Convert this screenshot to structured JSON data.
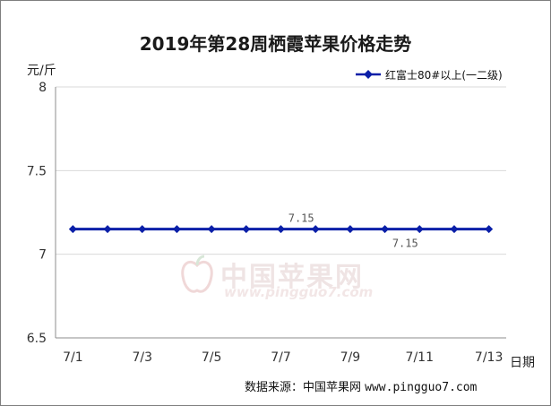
{
  "chart_data": {
    "type": "line",
    "title": "2019年第28周栖霞苹果价格走势",
    "ylabel": "元/斤",
    "xlabel": "日期",
    "ylim": [
      6.5,
      8
    ],
    "yticks": [
      "8",
      "7.5",
      "7",
      "6.5"
    ],
    "ytick_values": [
      8,
      7.5,
      7,
      6.5
    ],
    "x": [
      "7/1",
      "7/2",
      "7/3",
      "7/4",
      "7/5",
      "7/6",
      "7/7",
      "7/8",
      "7/9",
      "7/10",
      "7/11",
      "7/12",
      "7/13"
    ],
    "xticks_shown": [
      "7/1",
      "7/3",
      "7/5",
      "7/7",
      "7/9",
      "7/11",
      "7/13"
    ],
    "grid": "horizontal",
    "legend_position": "top-right",
    "series": [
      {
        "name": "红富士80#以上(一二级)",
        "color": "#0a1fa8",
        "values": [
          7.15,
          7.15,
          7.15,
          7.15,
          7.15,
          7.15,
          7.15,
          7.15,
          7.15,
          7.15,
          7.15,
          7.15,
          7.15
        ]
      }
    ],
    "data_labels": [
      {
        "x": "7/8",
        "text": "7.15",
        "position": "above"
      },
      {
        "x": "7/11",
        "text": "7.15",
        "position": "below"
      }
    ]
  },
  "source": {
    "label": "数据来源：中国苹果网",
    "url": "www.pingguo7.com"
  },
  "watermark": {
    "cn": "中国苹果网",
    "url": "www.pingguo7.com"
  }
}
